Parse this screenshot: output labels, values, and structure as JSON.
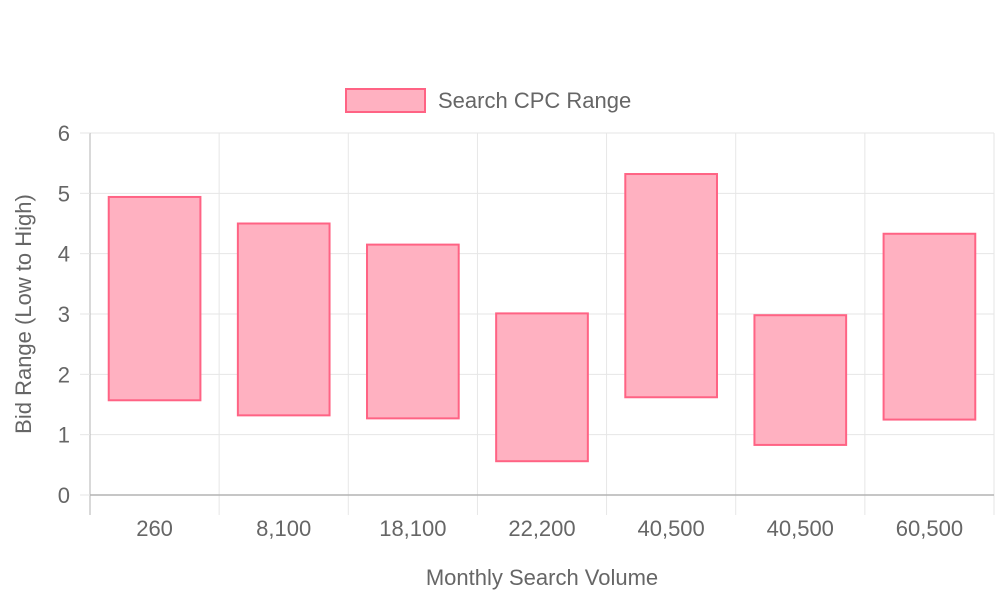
{
  "chart_data": {
    "type": "bar",
    "subtype": "floating-range",
    "categories": [
      "260",
      "8,100",
      "18,100",
      "22,200",
      "40,500",
      "40,500",
      "60,500"
    ],
    "series": [
      {
        "name": "Search CPC Range",
        "ranges": [
          [
            1.57,
            4.94
          ],
          [
            1.32,
            4.5
          ],
          [
            1.27,
            4.15
          ],
          [
            0.56,
            3.01
          ],
          [
            1.62,
            5.32
          ],
          [
            0.83,
            2.98
          ],
          [
            1.25,
            4.33
          ]
        ]
      }
    ],
    "xlabel": "Monthly Search Volume",
    "ylabel": "Bid Range (Low to High)",
    "ylim": [
      0,
      6
    ],
    "yticks": [
      0,
      1,
      2,
      3,
      4,
      5,
      6
    ],
    "grid": true,
    "legend_position": "top-center",
    "colors": {
      "bar_fill": "#ffb1c1",
      "bar_border": "#ff6384",
      "grid": "#e6e6e6",
      "axis": "#b3b3b3",
      "text": "#666666"
    }
  }
}
